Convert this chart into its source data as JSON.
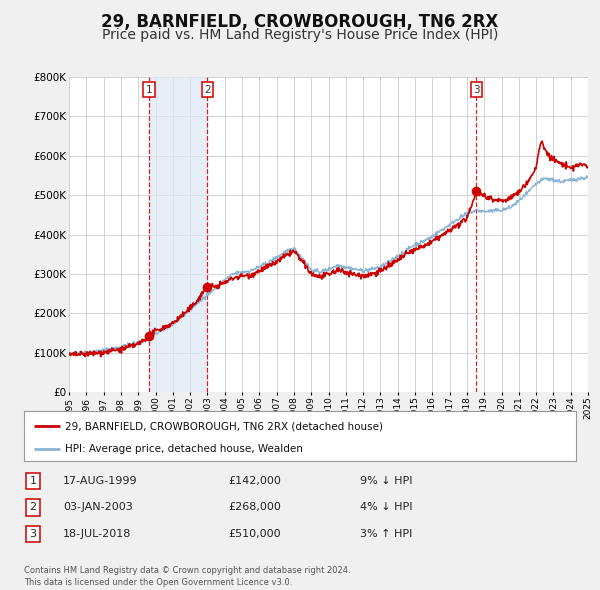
{
  "title": "29, BARNFIELD, CROWBOROUGH, TN6 2RX",
  "subtitle": "Price paid vs. HM Land Registry's House Price Index (HPI)",
  "title_fontsize": 12,
  "subtitle_fontsize": 10,
  "bg_color": "#f0f0f0",
  "plot_bg_color": "#ffffff",
  "grid_color": "#cccccc",
  "year_start": 1995,
  "year_end": 2025,
  "ylim": [
    0,
    800000
  ],
  "yticks": [
    0,
    100000,
    200000,
    300000,
    400000,
    500000,
    600000,
    700000,
    800000
  ],
  "ytick_labels": [
    "£0",
    "£100K",
    "£200K",
    "£300K",
    "£400K",
    "£500K",
    "£600K",
    "£700K",
    "£800K"
  ],
  "hpi_color": "#8ab4d4",
  "price_color": "#cc0000",
  "sale_dates": [
    1999.625,
    2003.0,
    2018.54
  ],
  "sale_prices": [
    142000,
    268000,
    510000
  ],
  "sale_labels": [
    "1",
    "2",
    "3"
  ],
  "vline_color": "#cc0000",
  "vline_shade_pairs": [
    [
      1999.625,
      2003.0
    ]
  ],
  "shade_color": "#dce8f5",
  "legend_label_price": "29, BARNFIELD, CROWBOROUGH, TN6 2RX (detached house)",
  "legend_label_hpi": "HPI: Average price, detached house, Wealden",
  "table_rows": [
    {
      "num": "1",
      "date": "17-AUG-1999",
      "price": "£142,000",
      "pct": "9% ↓ HPI"
    },
    {
      "num": "2",
      "date": "03-JAN-2003",
      "price": "£268,000",
      "pct": "4% ↓ HPI"
    },
    {
      "num": "3",
      "date": "18-JUL-2018",
      "price": "£510,000",
      "pct": "3% ↑ HPI"
    }
  ],
  "footer_text": "Contains HM Land Registry data © Crown copyright and database right 2024.\nThis data is licensed under the Open Government Licence v3.0.",
  "xtick_years": [
    1995,
    1996,
    1997,
    1998,
    1999,
    2000,
    2001,
    2002,
    2003,
    2004,
    2005,
    2006,
    2007,
    2008,
    2009,
    2010,
    2011,
    2012,
    2013,
    2014,
    2015,
    2016,
    2017,
    2018,
    2019,
    2020,
    2021,
    2022,
    2023,
    2024,
    2025
  ]
}
